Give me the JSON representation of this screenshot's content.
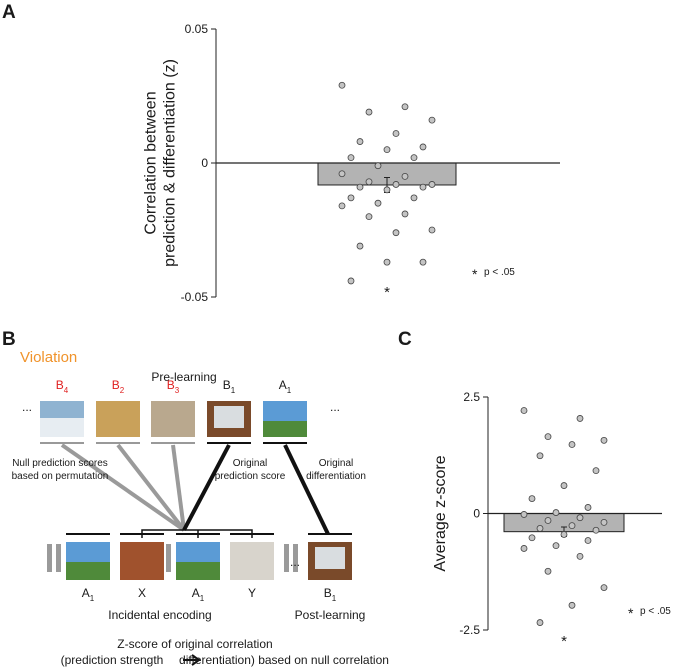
{
  "chart_data": [
    {
      "type": "bar",
      "panel": "A",
      "y_label": [
        "Correlation between",
        "prediction & differentiation (z)"
      ],
      "values": [
        -0.0082
      ],
      "errors": [
        0.0028
      ],
      "color": "#b3b3b3",
      "point_color": "#c4c4c4",
      "points": [
        0.029,
        0.021,
        0.019,
        0.016,
        0.011,
        0.008,
        0.006,
        0.005,
        0.002,
        0.002,
        -0.001,
        -0.004,
        -0.005,
        -0.007,
        -0.008,
        -0.008,
        -0.009,
        -0.009,
        -0.01,
        -0.013,
        -0.013,
        -0.015,
        -0.016,
        -0.019,
        -0.02,
        -0.025,
        -0.026,
        -0.031,
        -0.037,
        -0.037,
        -0.044
      ],
      "ylim": [
        -0.05,
        0.05
      ],
      "yticks": [
        -0.05,
        0,
        0.05
      ],
      "significance": "*",
      "legend_star": "*",
      "legend_text": "p < .05"
    },
    {
      "type": "bar",
      "panel": "C",
      "y_label": [
        "Average z-score"
      ],
      "values": [
        -0.39
      ],
      "errors": [
        0.1
      ],
      "color": "#b3b3b3",
      "point_color": "#c4c4c4",
      "points": [
        2.21,
        2.04,
        1.65,
        1.57,
        1.48,
        1.24,
        0.92,
        0.6,
        0.32,
        0.13,
        0.02,
        -0.02,
        -0.09,
        -0.15,
        -0.19,
        -0.26,
        -0.32,
        -0.36,
        -0.45,
        -0.52,
        -0.58,
        -0.69,
        -0.75,
        -0.92,
        -1.24,
        -1.59,
        -1.97,
        -2.34
      ],
      "ylim": [
        -2.5,
        2.5
      ],
      "yticks": [
        -2.5,
        0,
        2.5
      ],
      "significance": "*",
      "legend_star": "*",
      "legend_text": "p < .05"
    }
  ],
  "diagram": {
    "panel": "B",
    "title": "Violation",
    "pre_learning": "Pre-learning",
    "pre_items": [
      {
        "letter": "B",
        "sub": "4",
        "color": "#e02020"
      },
      {
        "letter": "B",
        "sub": "2",
        "color": "#e02020"
      },
      {
        "letter": "B",
        "sub": "3",
        "color": "#e02020"
      },
      {
        "letter": "B",
        "sub": "1",
        "color": "#1a1a1a"
      },
      {
        "letter": "A",
        "sub": "1",
        "color": "#1a1a1a"
      }
    ],
    "ellipsis": "...",
    "null_label": [
      "Null prediction scores",
      "based on permutation"
    ],
    "original_prediction": [
      "Original",
      "prediction score"
    ],
    "original_differentiation": [
      "Original",
      "differentiation"
    ],
    "encoding_items": [
      {
        "letter": "A",
        "sub": "1"
      },
      {
        "letter": "X",
        "sub": ""
      },
      {
        "letter": "A",
        "sub": "1"
      },
      {
        "letter": "Y",
        "sub": ""
      }
    ],
    "post_item": {
      "letter": "B",
      "sub": "1"
    },
    "incidental_encoding": "Incidental encoding",
    "post_learning": "Post-learning",
    "zscore_line1": "Z-score of original correlation",
    "zscore_line2a": "(prediction strength",
    "zscore_line2b": "differentiation) based on null correlation"
  }
}
